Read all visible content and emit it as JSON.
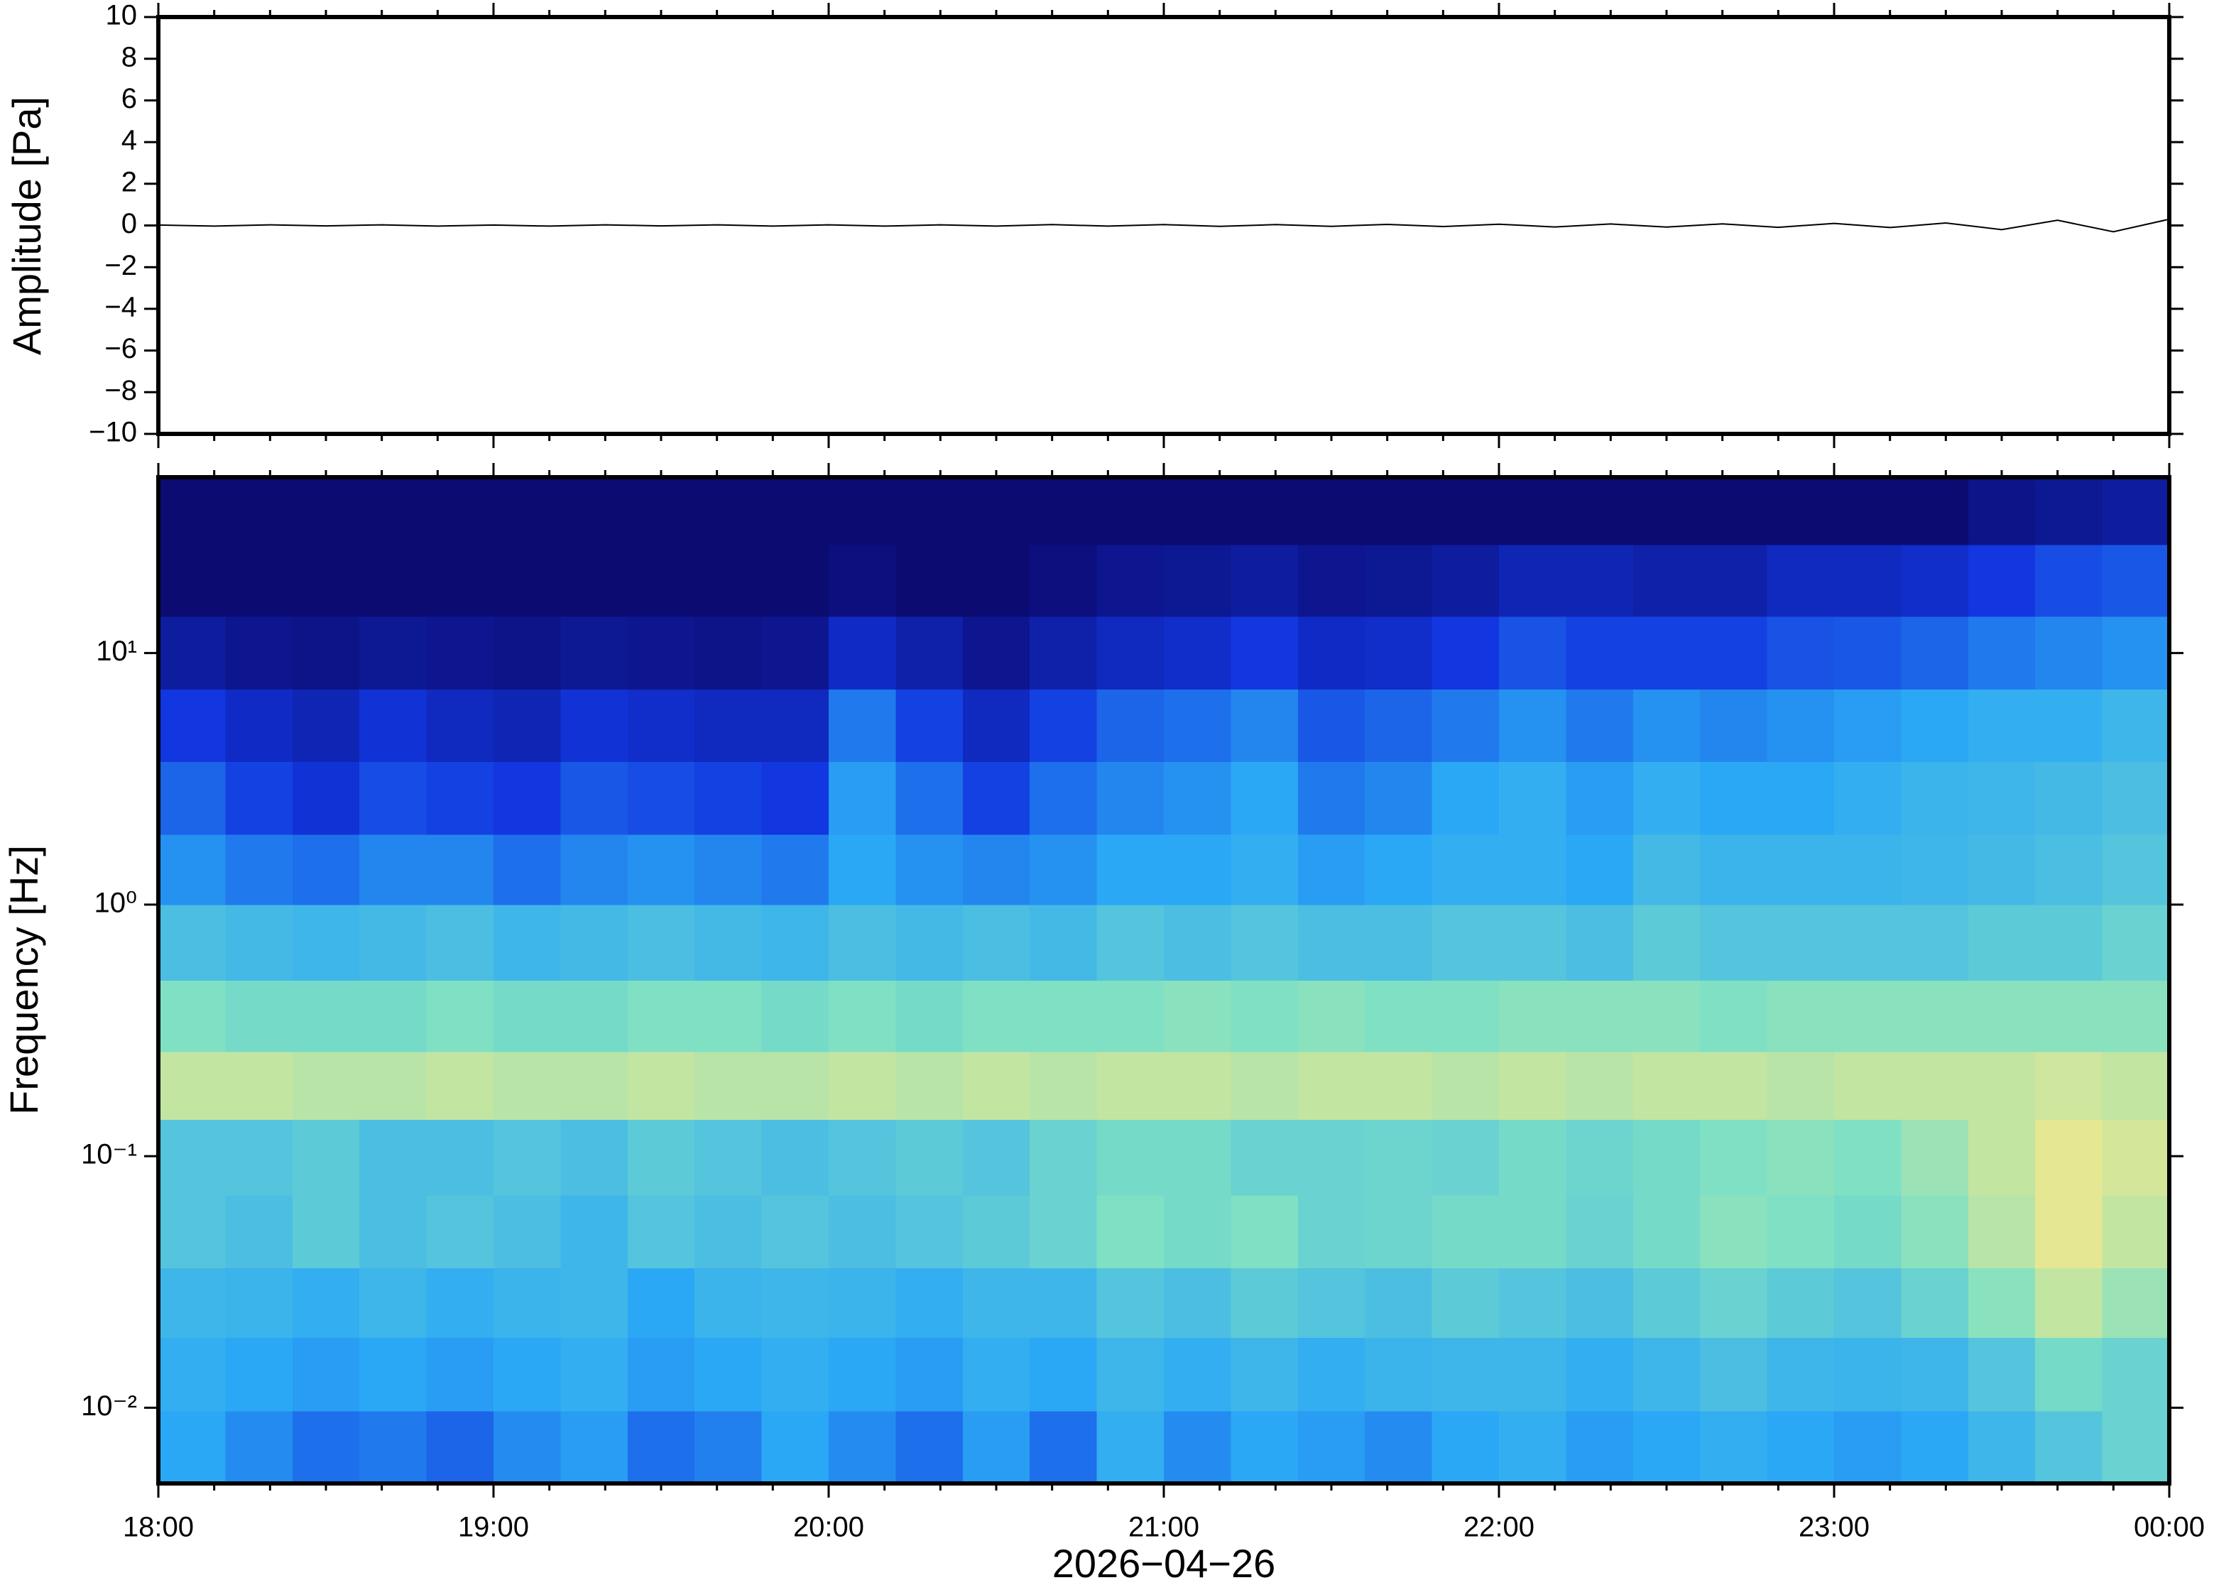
{
  "chart_data": [
    {
      "type": "line",
      "ylabel": "Amplitude [Pa]",
      "x": [
        "18:00",
        "18:10",
        "18:20",
        "18:30",
        "18:40",
        "18:50",
        "19:00",
        "19:10",
        "19:20",
        "19:30",
        "19:40",
        "19:50",
        "20:00",
        "20:10",
        "20:20",
        "20:30",
        "20:40",
        "20:50",
        "21:00",
        "21:10",
        "21:20",
        "21:30",
        "21:40",
        "21:50",
        "22:00",
        "22:10",
        "22:20",
        "22:30",
        "22:40",
        "22:50",
        "23:00",
        "23:10",
        "23:20",
        "23:30",
        "23:40",
        "23:50",
        "00:00"
      ],
      "values": [
        0.02,
        -0.03,
        0.03,
        -0.02,
        0.03,
        -0.03,
        0.02,
        -0.03,
        0.03,
        -0.02,
        0.03,
        -0.03,
        0.03,
        -0.03,
        0.03,
        -0.03,
        0.04,
        -0.03,
        0.04,
        -0.04,
        0.04,
        -0.04,
        0.05,
        -0.05,
        0.06,
        -0.07,
        0.07,
        -0.08,
        0.08,
        -0.09,
        0.1,
        -0.1,
        0.12,
        -0.2,
        0.25,
        -0.3,
        0.3
      ],
      "color": "#000000",
      "xlim": [
        "18:00",
        "00:00"
      ],
      "xticks": [
        "18:00",
        "19:00",
        "20:00",
        "21:00",
        "22:00",
        "23:00",
        "00:00"
      ],
      "ylim": [
        -10,
        10
      ],
      "yticks": [
        {
          "value": -10,
          "label": "−10"
        },
        {
          "value": -8,
          "label": "−8"
        },
        {
          "value": -6,
          "label": "−6"
        },
        {
          "value": -4,
          "label": "−4"
        },
        {
          "value": -2,
          "label": "−2"
        },
        0,
        2,
        4,
        6,
        8,
        10
      ]
    },
    {
      "type": "heatmap",
      "ylabel": "Frequency [Hz]",
      "xlabel": "2026−04−26",
      "xbins": [
        "18:00",
        "18:12",
        "18:24",
        "18:36",
        "18:48",
        "19:00",
        "19:12",
        "19:24",
        "19:36",
        "19:48",
        "20:00",
        "20:12",
        "20:24",
        "20:36",
        "20:48",
        "21:00",
        "21:12",
        "21:24",
        "21:36",
        "21:48",
        "22:00",
        "22:12",
        "22:24",
        "22:36",
        "22:48",
        "23:00",
        "23:12",
        "23:24",
        "23:36",
        "23:48",
        "00:00"
      ],
      "ybins": [
        0.005,
        0.0097,
        0.019,
        0.036,
        0.07,
        0.14,
        0.26,
        0.5,
        1,
        1.9,
        3.7,
        7.2,
        14,
        27,
        50
      ],
      "values": [
        [
          0.4,
          0.35,
          0.3,
          0.32,
          0.28,
          0.35,
          0.38,
          0.3,
          0.33,
          0.4,
          0.35,
          0.3,
          0.38,
          0.3,
          0.42,
          0.35,
          0.4,
          0.38,
          0.35,
          0.4,
          0.42,
          0.38,
          0.4,
          0.42,
          0.4,
          0.38,
          0.4,
          0.45,
          0.5,
          0.55
        ],
        [
          0.42,
          0.4,
          0.38,
          0.4,
          0.38,
          0.4,
          0.42,
          0.38,
          0.4,
          0.42,
          0.4,
          0.38,
          0.42,
          0.4,
          0.45,
          0.42,
          0.45,
          0.42,
          0.44,
          0.45,
          0.45,
          0.42,
          0.45,
          0.48,
          0.45,
          0.44,
          0.45,
          0.5,
          0.58,
          0.55
        ],
        [
          0.45,
          0.44,
          0.42,
          0.45,
          0.42,
          0.44,
          0.45,
          0.4,
          0.44,
          0.45,
          0.44,
          0.42,
          0.45,
          0.45,
          0.5,
          0.48,
          0.52,
          0.5,
          0.48,
          0.52,
          0.5,
          0.48,
          0.52,
          0.55,
          0.52,
          0.5,
          0.55,
          0.62,
          0.72,
          0.65
        ],
        [
          0.5,
          0.48,
          0.52,
          0.48,
          0.5,
          0.48,
          0.45,
          0.5,
          0.48,
          0.5,
          0.48,
          0.5,
          0.52,
          0.55,
          0.6,
          0.58,
          0.6,
          0.55,
          0.56,
          0.58,
          0.58,
          0.55,
          0.58,
          0.62,
          0.6,
          0.58,
          0.62,
          0.7,
          0.78,
          0.72
        ],
        [
          0.5,
          0.5,
          0.52,
          0.48,
          0.48,
          0.5,
          0.48,
          0.52,
          0.5,
          0.48,
          0.5,
          0.52,
          0.5,
          0.55,
          0.58,
          0.58,
          0.55,
          0.55,
          0.56,
          0.55,
          0.58,
          0.56,
          0.58,
          0.6,
          0.62,
          0.6,
          0.65,
          0.72,
          0.78,
          0.75
        ],
        [
          0.72,
          0.72,
          0.7,
          0.7,
          0.72,
          0.7,
          0.7,
          0.72,
          0.7,
          0.7,
          0.72,
          0.7,
          0.72,
          0.7,
          0.72,
          0.72,
          0.7,
          0.72,
          0.72,
          0.7,
          0.72,
          0.7,
          0.72,
          0.72,
          0.7,
          0.72,
          0.72,
          0.72,
          0.74,
          0.72
        ],
        [
          0.6,
          0.58,
          0.58,
          0.58,
          0.6,
          0.58,
          0.58,
          0.6,
          0.6,
          0.58,
          0.6,
          0.58,
          0.6,
          0.6,
          0.6,
          0.62,
          0.6,
          0.62,
          0.6,
          0.6,
          0.62,
          0.62,
          0.62,
          0.6,
          0.62,
          0.62,
          0.62,
          0.62,
          0.62,
          0.62
        ],
        [
          0.48,
          0.46,
          0.45,
          0.46,
          0.48,
          0.45,
          0.46,
          0.48,
          0.46,
          0.45,
          0.48,
          0.46,
          0.48,
          0.46,
          0.5,
          0.48,
          0.5,
          0.48,
          0.48,
          0.5,
          0.5,
          0.48,
          0.52,
          0.5,
          0.5,
          0.5,
          0.5,
          0.52,
          0.52,
          0.55
        ],
        [
          0.36,
          0.32,
          0.3,
          0.34,
          0.34,
          0.3,
          0.34,
          0.36,
          0.34,
          0.32,
          0.4,
          0.36,
          0.34,
          0.36,
          0.4,
          0.4,
          0.42,
          0.38,
          0.4,
          0.42,
          0.42,
          0.4,
          0.46,
          0.44,
          0.44,
          0.44,
          0.45,
          0.46,
          0.48,
          0.5
        ],
        [
          0.28,
          0.22,
          0.18,
          0.24,
          0.22,
          0.2,
          0.26,
          0.24,
          0.22,
          0.2,
          0.38,
          0.3,
          0.22,
          0.3,
          0.34,
          0.36,
          0.4,
          0.32,
          0.34,
          0.4,
          0.42,
          0.38,
          0.42,
          0.4,
          0.4,
          0.42,
          0.44,
          0.45,
          0.46,
          0.48
        ],
        [
          0.2,
          0.15,
          0.12,
          0.18,
          0.14,
          0.12,
          0.18,
          0.16,
          0.14,
          0.14,
          0.32,
          0.22,
          0.14,
          0.22,
          0.28,
          0.3,
          0.34,
          0.26,
          0.28,
          0.32,
          0.36,
          0.32,
          0.36,
          0.34,
          0.36,
          0.38,
          0.4,
          0.42,
          0.42,
          0.45
        ],
        [
          0.08,
          0.05,
          0.04,
          0.06,
          0.05,
          0.04,
          0.06,
          0.05,
          0.04,
          0.05,
          0.15,
          0.1,
          0.05,
          0.1,
          0.14,
          0.16,
          0.2,
          0.15,
          0.16,
          0.2,
          0.25,
          0.22,
          0.22,
          0.22,
          0.25,
          0.26,
          0.28,
          0.32,
          0.34,
          0.36
        ],
        [
          0,
          0,
          0,
          0,
          0,
          0,
          0,
          0,
          0,
          0,
          0.02,
          0,
          0,
          0.02,
          0.05,
          0.06,
          0.08,
          0.05,
          0.06,
          0.08,
          0.12,
          0.12,
          0.1,
          0.1,
          0.14,
          0.14,
          0.16,
          0.2,
          0.24,
          0.26
        ],
        [
          0,
          0,
          0,
          0,
          0,
          0,
          0,
          0,
          0,
          0,
          0,
          0,
          0,
          0,
          0,
          0,
          0,
          0,
          0,
          0,
          0,
          0,
          0,
          0,
          0,
          0,
          0,
          0.04,
          0.06,
          0.08
        ]
      ],
      "colormap": [
        "#0b0b72",
        "#1236e0",
        "#2aa8f5",
        "#7fe0c4",
        "#f0e88c",
        "#f2a050"
      ],
      "log_y": true,
      "xlim": [
        "18:00",
        "00:00"
      ],
      "xticks": [
        "18:00",
        "19:00",
        "20:00",
        "21:00",
        "22:00",
        "23:00",
        "00:00"
      ],
      "ylim": [
        0.005,
        50
      ],
      "yticks": [
        {
          "value": 0.01,
          "label": "10⁻²"
        },
        {
          "value": 0.1,
          "label": "10⁻¹"
        },
        {
          "value": 1,
          "label": "10⁰"
        },
        {
          "value": 10,
          "label": "10¹"
        }
      ]
    }
  ]
}
